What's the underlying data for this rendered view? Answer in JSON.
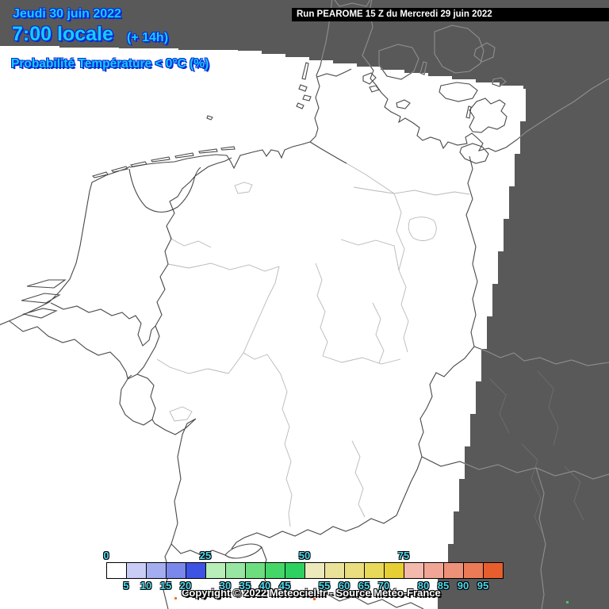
{
  "header": {
    "date": "Jeudi 30 juin 2022",
    "time": "7:00 locale",
    "offset": "(+ 14h)",
    "variable": "Probabilité Température < 0°C (%)"
  },
  "run_banner": {
    "label": "Run PEAROME 15 Z du Mercredi 29 juin 2022"
  },
  "legend": {
    "ticks_above": [
      "0",
      "25",
      "50",
      "75"
    ],
    "ticks_below": [
      "5",
      "10",
      "15",
      "20",
      "30",
      "35",
      "40",
      "45",
      "55",
      "60",
      "65",
      "70",
      "80",
      "85",
      "90",
      "95"
    ],
    "cell_values": [
      0,
      5,
      10,
      15,
      20,
      25,
      30,
      35,
      40,
      45,
      50,
      55,
      60,
      65,
      70,
      75,
      80,
      85,
      90,
      95
    ],
    "cell_colors": [
      "#ffffff",
      "#c9cdf5",
      "#a4adf0",
      "#7988ea",
      "#3d53e4",
      "#b8eeb8",
      "#97e6a1",
      "#6edd80",
      "#44d768",
      "#2ed160",
      "#ece9bd",
      "#ebe29a",
      "#e9dd7d",
      "#e8d95b",
      "#e6cf33",
      "#f4b9ad",
      "#f1a695",
      "#ee9179",
      "#eb7a57",
      "#e75e2d"
    ]
  },
  "footer": {
    "copyright": "Copyright © 2022 Meteociel.fr - Source Météo-France"
  },
  "colors": {
    "background": "#595959",
    "domain_fill": "#ffffff",
    "border_major": "#484848",
    "border_minor": "#b8b8b8",
    "gray_zone_major": "#8f8f8f",
    "gray_zone_minor": "#6e6e6e",
    "header_text": "#16ccfb",
    "header_shadow": "#0a2bd8",
    "legend_text": "#4fd9ef"
  }
}
